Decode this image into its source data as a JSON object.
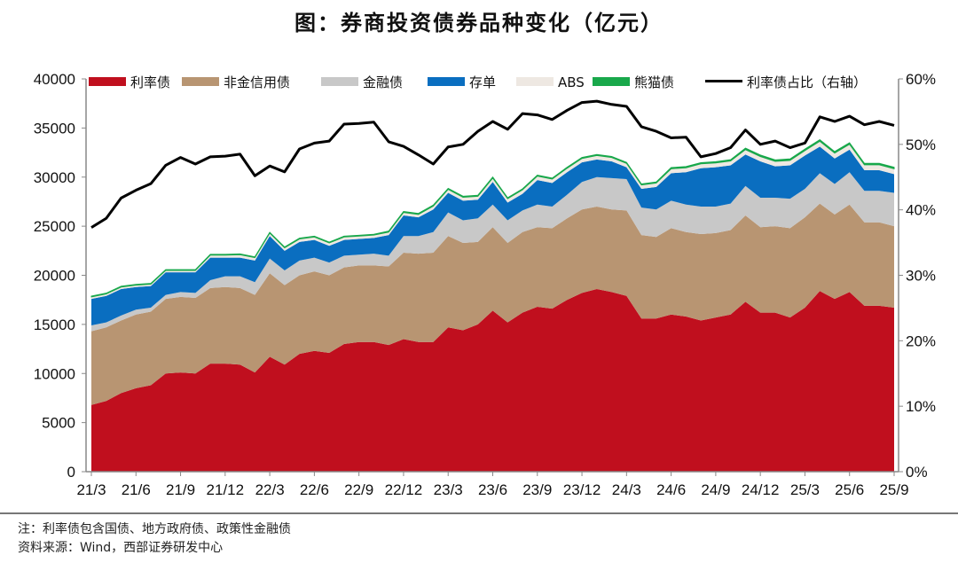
{
  "title": "图：券商投资债券品种变化（亿元）",
  "footnote": "注：利率债包含国债、地方政府债、政策性金融债",
  "source": "资料来源：Wind，西部证券研发中心",
  "chart_data": {
    "type": "area",
    "stacked": true,
    "title": "图：券商投资债券品种变化（亿元）",
    "x": [
      "21/3",
      "21/4",
      "21/5",
      "21/6",
      "21/7",
      "21/8",
      "21/9",
      "21/10",
      "21/11",
      "21/12",
      "22/1",
      "22/2",
      "22/3",
      "22/4",
      "22/5",
      "22/6",
      "22/7",
      "22/8",
      "22/9",
      "22/10",
      "22/11",
      "22/12",
      "23/1",
      "23/2",
      "23/3",
      "23/4",
      "23/5",
      "23/6",
      "23/7",
      "23/8",
      "23/9",
      "23/10",
      "23/11",
      "23/12",
      "24/1",
      "24/2",
      "24/3",
      "24/4",
      "24/5",
      "24/6",
      "24/7",
      "24/8",
      "24/9",
      "24/10",
      "24/11",
      "24/12",
      "25/1",
      "25/2",
      "25/3",
      "25/4",
      "25/5",
      "25/6",
      "25/7",
      "25/8",
      "25/9"
    ],
    "x_tick_labels": [
      "21/3",
      "21/6",
      "21/9",
      "21/12",
      "22/3",
      "22/6",
      "22/9",
      "22/12",
      "23/3",
      "23/6",
      "23/9",
      "23/12",
      "24/3",
      "24/6",
      "24/9",
      "24/12",
      "25/3",
      "25/6",
      "25/9"
    ],
    "y_left": {
      "range": [
        0,
        40000
      ],
      "ticks": [
        "0",
        "5000",
        "10000",
        "15000",
        "20000",
        "25000",
        "30000",
        "35000",
        "40000"
      ]
    },
    "y_right": {
      "range": [
        0,
        60
      ],
      "ticks": [
        "0%",
        "10%",
        "20%",
        "30%",
        "40%",
        "50%",
        "60%"
      ]
    },
    "grid": false,
    "legend_placement": "top",
    "series": [
      {
        "name": "利率债",
        "color": "#C00F1E",
        "values": [
          6800,
          7200,
          8000,
          8500,
          8800,
          10000,
          10100,
          10000,
          11000,
          11000,
          10900,
          10100,
          11700,
          10900,
          12000,
          12300,
          12100,
          13000,
          13200,
          13200,
          12900,
          13500,
          13200,
          13200,
          14700,
          14400,
          15000,
          16400,
          15200,
          16200,
          16800,
          16600,
          17500,
          18200,
          18600,
          18300,
          17900,
          15600,
          15600,
          16000,
          15800,
          15400,
          15700,
          16000,
          17300,
          16200,
          16200,
          15700,
          16700,
          18400,
          17600,
          18300,
          16900,
          16900,
          16700
        ]
      },
      {
        "name": "非金信用债",
        "color": "#B89572",
        "values": [
          7500,
          7500,
          7400,
          7500,
          7500,
          7600,
          7700,
          7700,
          7700,
          7800,
          7800,
          7900,
          8500,
          8100,
          8000,
          8100,
          7900,
          7800,
          7800,
          7800,
          8000,
          8800,
          9000,
          9100,
          9300,
          8900,
          8400,
          8500,
          8100,
          8200,
          8100,
          8200,
          8300,
          8500,
          8400,
          8400,
          8700,
          8500,
          8300,
          8800,
          8600,
          8800,
          8600,
          8600,
          8800,
          8700,
          8800,
          9100,
          9200,
          8900,
          8600,
          8900,
          8500,
          8500,
          8300
        ]
      },
      {
        "name": "金融债",
        "color": "#C8C8C8",
        "values": [
          600,
          500,
          500,
          500,
          400,
          400,
          500,
          500,
          800,
          1100,
          1200,
          1300,
          1500,
          1500,
          1500,
          1400,
          1300,
          1200,
          1100,
          1200,
          1100,
          1700,
          1800,
          2100,
          2400,
          2300,
          2400,
          2300,
          2300,
          2200,
          2300,
          2200,
          2400,
          2800,
          3000,
          3200,
          3200,
          2800,
          2800,
          2800,
          2800,
          2800,
          2700,
          2700,
          3000,
          3000,
          2900,
          3000,
          2900,
          3100,
          3100,
          3300,
          3200,
          3200,
          3400
        ]
      },
      {
        "name": "存单",
        "color": "#0A6EC0",
        "values": [
          2700,
          2700,
          2700,
          2300,
          2200,
          2300,
          2000,
          2100,
          2300,
          1900,
          1900,
          2200,
          2300,
          2000,
          1900,
          1800,
          1700,
          1600,
          1600,
          1600,
          2100,
          2100,
          1900,
          2300,
          2000,
          2000,
          1900,
          2300,
          1800,
          1700,
          2500,
          2400,
          2300,
          2000,
          1800,
          1700,
          1200,
          1900,
          2300,
          2800,
          3300,
          3900,
          4000,
          3900,
          3200,
          3700,
          3200,
          3400,
          3400,
          2700,
          2600,
          2300,
          2100,
          2100,
          1900
        ]
      },
      {
        "name": "ABS",
        "color": "#EEE8E2",
        "values": [
          200,
          200,
          200,
          200,
          200,
          200,
          200,
          200,
          250,
          250,
          300,
          300,
          300,
          300,
          300,
          300,
          300,
          300,
          300,
          300,
          300,
          300,
          300,
          350,
          350,
          350,
          350,
          400,
          400,
          400,
          400,
          400,
          400,
          400,
          400,
          400,
          400,
          400,
          400,
          450,
          450,
          450,
          450,
          450,
          500,
          500,
          500,
          500,
          500,
          550,
          550,
          550,
          550,
          550,
          550
        ]
      },
      {
        "name": "熊猫债",
        "color": "#19A84B",
        "values": [
          80,
          80,
          80,
          80,
          80,
          80,
          80,
          80,
          80,
          80,
          80,
          80,
          80,
          80,
          80,
          80,
          80,
          80,
          80,
          80,
          100,
          100,
          100,
          100,
          100,
          100,
          100,
          100,
          100,
          100,
          100,
          100,
          100,
          100,
          100,
          100,
          100,
          100,
          100,
          120,
          120,
          120,
          120,
          120,
          150,
          150,
          150,
          150,
          150,
          150,
          150,
          150,
          150,
          150,
          150
        ]
      },
      {
        "name": "利率债占比（右轴）",
        "color": "#000000",
        "type": "line",
        "axis": "right",
        "values": [
          37.3,
          38.7,
          41.8,
          43,
          44,
          46.8,
          48,
          47,
          48.1,
          48.2,
          48.5,
          45.2,
          46.7,
          45.8,
          49.3,
          50.2,
          50.5,
          53.1,
          53.2,
          53.4,
          50.4,
          49.7,
          48.4,
          47,
          49.6,
          50,
          52,
          53.5,
          52.3,
          54.7,
          54.5,
          53.8,
          55.2,
          56.4,
          56.6,
          56.1,
          55.8,
          52.7,
          52,
          51,
          51.1,
          48.1,
          48.6,
          49.5,
          52.2,
          50,
          50.5,
          49.5,
          50.2,
          54.2,
          53.5,
          54.3,
          53,
          53.5,
          52.9
        ]
      }
    ]
  }
}
